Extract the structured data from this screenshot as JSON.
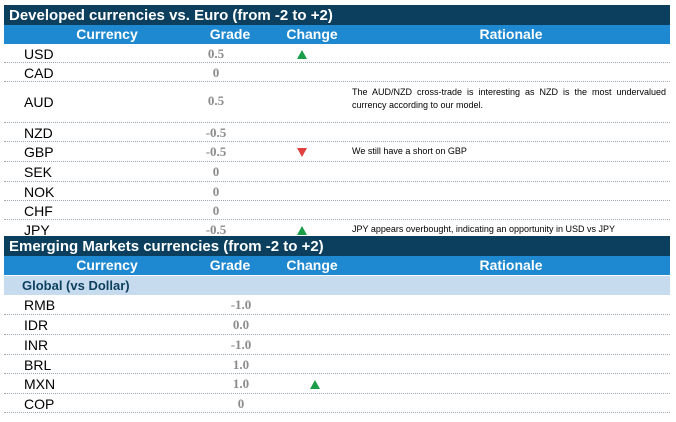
{
  "developed": {
    "title": "Developed currencies vs. Euro (from -2 to +2)",
    "headers": {
      "currency": "Currency",
      "grade": "Grade",
      "change": "Change",
      "rationale": "Rationale"
    },
    "rows": [
      {
        "currency": "USD",
        "grade": "0.5",
        "change": "up",
        "rationale": ""
      },
      {
        "currency": "CAD",
        "grade": "0",
        "change": "",
        "rationale": ""
      },
      {
        "currency": "AUD",
        "grade": "0.5",
        "change": "",
        "rationale": "The AUD/NZD cross-trade is interesting as NZD is the most undervalued currency according to our model."
      },
      {
        "currency": "NZD",
        "grade": "-0.5",
        "change": "",
        "rationale": ""
      },
      {
        "currency": "GBP",
        "grade": "-0.5",
        "change": "down",
        "rationale": "We still have a short on GBP"
      },
      {
        "currency": "SEK",
        "grade": "0",
        "change": "",
        "rationale": ""
      },
      {
        "currency": "NOK",
        "grade": "0",
        "change": "",
        "rationale": ""
      },
      {
        "currency": "CHF",
        "grade": "0",
        "change": "",
        "rationale": ""
      },
      {
        "currency": "JPY",
        "grade": "-0.5",
        "change": "up",
        "rationale": "JPY appears overbought, indicating an opportunity in USD vs JPY"
      }
    ]
  },
  "emerging": {
    "title": "Emerging Markets currencies (from -2 to +2)",
    "headers": {
      "currency": "Currency",
      "grade": "Grade",
      "change": "Change",
      "rationale": "Rationale"
    },
    "group_label": "Global (vs Dollar)",
    "rows": [
      {
        "currency": "RMB",
        "grade": "-1.0",
        "change": ""
      },
      {
        "currency": "IDR",
        "grade": "0.0",
        "change": ""
      },
      {
        "currency": "INR",
        "grade": "-1.0",
        "change": ""
      },
      {
        "currency": "BRL",
        "grade": "1.0",
        "change": ""
      },
      {
        "currency": "MXN",
        "grade": "1.0",
        "change": "up"
      },
      {
        "currency": "COP",
        "grade": "0",
        "change": ""
      }
    ]
  },
  "colors": {
    "band": "#0c3f5e",
    "header": "#1e88d0",
    "subheader": "#c7dbee",
    "up": "#1a9e4a",
    "down": "#e0403f",
    "grade": "#8c8c8c"
  }
}
